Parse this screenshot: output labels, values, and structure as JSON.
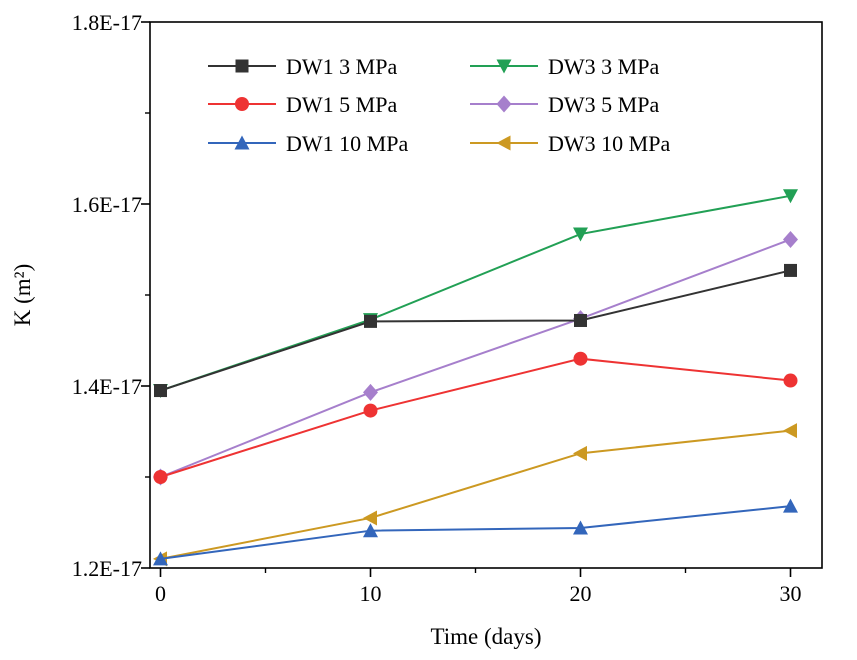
{
  "chart_data": {
    "type": "line",
    "title": "",
    "xlabel": "Time (days)",
    "ylabel": "K (m²)",
    "x": [
      0,
      10,
      20,
      30
    ],
    "xlim": [
      -0.5,
      31.5
    ],
    "ylim": [
      1.2e-17,
      1.8e-17
    ],
    "x_ticks": [
      0,
      10,
      20,
      30
    ],
    "x_tick_labels": [
      "0",
      "10",
      "20",
      "30"
    ],
    "y_ticks": [
      1.2e-17,
      1.4e-17,
      1.6e-17,
      1.8e-17
    ],
    "y_tick_labels": [
      "1.2E-17",
      "1.4E-17",
      "1.6E-17",
      "1.8E-17"
    ],
    "grid": false,
    "legend_position": "top-left",
    "legend_columns": 2,
    "series": [
      {
        "name": "DW1 3 MPa",
        "values": [
          1.395e-17,
          1.471e-17,
          1.472e-17,
          1.527e-17
        ],
        "color": "#333333",
        "marker": "square"
      },
      {
        "name": "DW1 5 MPa",
        "values": [
          1.3e-17,
          1.373e-17,
          1.43e-17,
          1.406e-17
        ],
        "color": "#ee3333",
        "marker": "circle"
      },
      {
        "name": "DW1 10 MPa",
        "values": [
          1.21e-17,
          1.241e-17,
          1.244e-17,
          1.268e-17
        ],
        "color": "#3366bb",
        "marker": "triangle-up"
      },
      {
        "name": "DW3 3 MPa",
        "values": [
          1.395e-17,
          1.473e-17,
          1.567e-17,
          1.609e-17
        ],
        "color": "#22a055",
        "marker": "triangle-down"
      },
      {
        "name": "DW3 5 MPa",
        "values": [
          1.3e-17,
          1.393e-17,
          1.474e-17,
          1.561e-17
        ],
        "color": "#a67fcc",
        "marker": "diamond"
      },
      {
        "name": "DW3 10 MPa",
        "values": [
          1.21e-17,
          1.255e-17,
          1.326e-17,
          1.351e-17
        ],
        "color": "#cc9922",
        "marker": "triangle-left"
      }
    ]
  }
}
